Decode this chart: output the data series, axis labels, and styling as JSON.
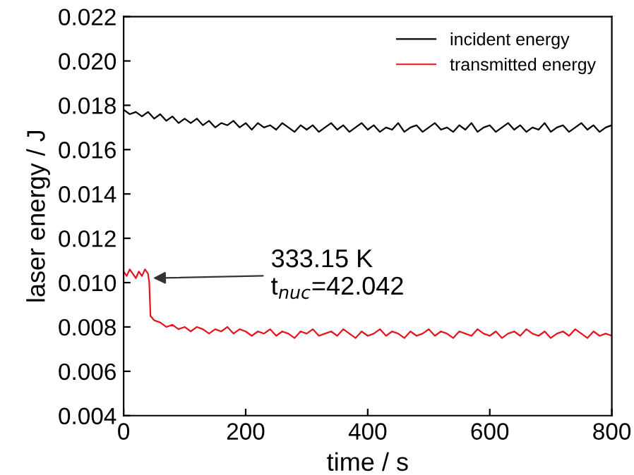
{
  "chart_data": {
    "type": "line",
    "xlabel": "time / s",
    "ylabel": "laser energy / J",
    "xlim": [
      0,
      800
    ],
    "xticks": [
      0,
      200,
      400,
      600,
      800
    ],
    "ylim": [
      0.004,
      0.022
    ],
    "yticks": [
      0.004,
      0.006,
      0.008,
      {
        "value": 0.01,
        "label": "0.010"
      },
      0.012,
      0.014,
      0.016,
      0.018,
      {
        "value": 0.02,
        "label": "0.020"
      },
      0.022
    ],
    "grid": false,
    "legend": "top right",
    "line_style": "solid",
    "marker": "none",
    "annotations": [
      {
        "text": "333.15 K\nt$_{nuc}$=42.042",
        "x": 42,
        "y": 0.0102
      }
    ],
    "series": [
      {
        "name": "incident energy",
        "color": "#000000",
        "x": [
          0,
          10,
          20,
          30,
          40,
          50,
          60,
          70,
          80,
          90,
          100,
          110,
          120,
          130,
          140,
          150,
          160,
          170,
          180,
          190,
          200,
          210,
          220,
          230,
          240,
          250,
          260,
          270,
          280,
          290,
          300,
          310,
          320,
          330,
          340,
          350,
          360,
          370,
          380,
          390,
          400,
          410,
          420,
          430,
          440,
          450,
          460,
          470,
          480,
          490,
          500,
          510,
          520,
          530,
          540,
          550,
          560,
          570,
          580,
          590,
          600,
          610,
          620,
          630,
          640,
          650,
          660,
          670,
          680,
          690,
          700,
          710,
          720,
          730,
          740,
          750,
          760,
          770,
          780,
          790,
          800
        ],
        "values": [
          0.0178,
          0.0176,
          0.0177,
          0.0175,
          0.0177,
          0.0174,
          0.0176,
          0.0173,
          0.0175,
          0.0172,
          0.0174,
          0.0172,
          0.0174,
          0.0171,
          0.0173,
          0.017,
          0.0172,
          0.0171,
          0.0173,
          0.017,
          0.0172,
          0.0169,
          0.0172,
          0.017,
          0.0171,
          0.0169,
          0.0172,
          0.017,
          0.0168,
          0.0171,
          0.0169,
          0.0171,
          0.0168,
          0.017,
          0.0172,
          0.0169,
          0.0171,
          0.0168,
          0.017,
          0.0172,
          0.0169,
          0.0171,
          0.0168,
          0.017,
          0.0169,
          0.0172,
          0.0168,
          0.017,
          0.0171,
          0.0168,
          0.017,
          0.0172,
          0.0169,
          0.017,
          0.0168,
          0.0171,
          0.0169,
          0.0172,
          0.0168,
          0.017,
          0.0171,
          0.0168,
          0.017,
          0.0172,
          0.0169,
          0.0171,
          0.0168,
          0.017,
          0.0169,
          0.0172,
          0.0168,
          0.017,
          0.0171,
          0.0168,
          0.017,
          0.0172,
          0.0169,
          0.0171,
          0.0168,
          0.017,
          0.0171
        ]
      },
      {
        "name": "transmitted energy",
        "color": "#e8141b",
        "x": [
          0,
          5,
          10,
          15,
          20,
          25,
          30,
          35,
          40,
          42,
          44,
          50,
          60,
          70,
          80,
          90,
          100,
          110,
          120,
          130,
          140,
          150,
          160,
          170,
          180,
          190,
          200,
          210,
          220,
          230,
          240,
          250,
          260,
          270,
          280,
          290,
          300,
          310,
          320,
          330,
          340,
          350,
          360,
          370,
          380,
          390,
          400,
          410,
          420,
          430,
          440,
          450,
          460,
          470,
          480,
          490,
          500,
          510,
          520,
          530,
          540,
          550,
          560,
          570,
          580,
          590,
          600,
          610,
          620,
          630,
          640,
          650,
          660,
          670,
          680,
          690,
          700,
          710,
          720,
          730,
          740,
          750,
          760,
          770,
          780,
          790,
          800
        ],
        "values": [
          0.0105,
          0.0103,
          0.0106,
          0.0104,
          0.0102,
          0.0105,
          0.0103,
          0.0106,
          0.0104,
          0.01,
          0.0085,
          0.0083,
          0.0082,
          0.008,
          0.0081,
          0.0079,
          0.008,
          0.0078,
          0.008,
          0.0079,
          0.0077,
          0.0079,
          0.0078,
          0.008,
          0.0077,
          0.0079,
          0.0078,
          0.0076,
          0.0078,
          0.0077,
          0.0079,
          0.0076,
          0.0078,
          0.0077,
          0.0075,
          0.0078,
          0.0077,
          0.0079,
          0.0076,
          0.0077,
          0.0078,
          0.0076,
          0.0079,
          0.0077,
          0.0075,
          0.0078,
          0.0076,
          0.0077,
          0.0079,
          0.0076,
          0.0078,
          0.0077,
          0.0075,
          0.0078,
          0.0076,
          0.0077,
          0.0079,
          0.0076,
          0.0078,
          0.0077,
          0.0075,
          0.0078,
          0.0077,
          0.0076,
          0.0079,
          0.0077,
          0.0076,
          0.0078,
          0.0075,
          0.0077,
          0.0078,
          0.0076,
          0.0079,
          0.0077,
          0.0076,
          0.0078,
          0.0075,
          0.0077,
          0.0078,
          0.0076,
          0.0079,
          0.0077,
          0.0075,
          0.0078,
          0.0076,
          0.0077,
          0.0076
        ]
      }
    ]
  }
}
